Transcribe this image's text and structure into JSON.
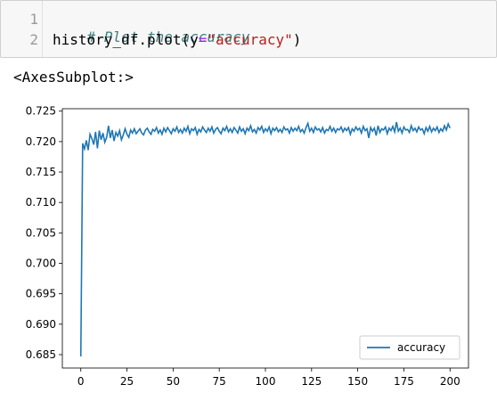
{
  "code_cell": {
    "lines": [
      {
        "number": "1",
        "comment": "# Plot the accuracy"
      },
      {
        "number": "2",
        "code_prefix": "history_df.plot(y",
        "code_equals": "=",
        "code_string": "\"accuracy\"",
        "code_suffix": ")"
      }
    ],
    "colors": {
      "comment": "#408080",
      "string": "#ba2121",
      "equals": "#aa22ff"
    }
  },
  "output": {
    "repr_text": "<AxesSubplot:>"
  },
  "chart_data": {
    "type": "line",
    "series": [
      {
        "name": "accuracy",
        "color": "#1f77b4",
        "x_start": 0,
        "values": [
          0.6847,
          0.7197,
          0.7188,
          0.7202,
          0.7186,
          0.7212,
          0.7205,
          0.7195,
          0.7216,
          0.7189,
          0.7218,
          0.7203,
          0.7214,
          0.7199,
          0.7207,
          0.7226,
          0.7206,
          0.7219,
          0.7201,
          0.7215,
          0.7209,
          0.7218,
          0.7203,
          0.7211,
          0.7221,
          0.7212,
          0.7207,
          0.7219,
          0.7214,
          0.7221,
          0.7213,
          0.7217,
          0.7221,
          0.7214,
          0.7211,
          0.7219,
          0.7222,
          0.7216,
          0.7212,
          0.722,
          0.7217,
          0.7223,
          0.7214,
          0.7219,
          0.7212,
          0.7222,
          0.7216,
          0.7223,
          0.7218,
          0.7213,
          0.7221,
          0.7217,
          0.7224,
          0.7215,
          0.722,
          0.7214,
          0.7222,
          0.7217,
          0.7225,
          0.7213,
          0.7221,
          0.7218,
          0.7223,
          0.7212,
          0.722,
          0.7216,
          0.7224,
          0.7219,
          0.7215,
          0.7222,
          0.7217,
          0.7224,
          0.7214,
          0.722,
          0.7223,
          0.7217,
          0.7213,
          0.7222,
          0.7218,
          0.7225,
          0.7216,
          0.7221,
          0.7215,
          0.7223,
          0.7219,
          0.7214,
          0.7224,
          0.7217,
          0.7221,
          0.7213,
          0.7222,
          0.7218,
          0.7226,
          0.7216,
          0.722,
          0.7214,
          0.7223,
          0.7219,
          0.7225,
          0.7215,
          0.7221,
          0.7217,
          0.7224,
          0.7213,
          0.7222,
          0.7218,
          0.7223,
          0.7216,
          0.722,
          0.7215,
          0.7224,
          0.7219,
          0.7221,
          0.7214,
          0.7223,
          0.7217,
          0.7222,
          0.7218,
          0.7225,
          0.7216,
          0.722,
          0.7214,
          0.7223,
          0.723,
          0.7217,
          0.7222,
          0.7215,
          0.7224,
          0.7219,
          0.7221,
          0.7216,
          0.7223,
          0.7214,
          0.722,
          0.7218,
          0.7225,
          0.7217,
          0.7222,
          0.7215,
          0.7221,
          0.7219,
          0.7224,
          0.7216,
          0.7222,
          0.7218,
          0.7223,
          0.7212,
          0.7221,
          0.7217,
          0.7224,
          0.7219,
          0.7222,
          0.7214,
          0.7225,
          0.7218,
          0.7221,
          0.7206,
          0.7223,
          0.7217,
          0.7222,
          0.721,
          0.7226,
          0.7215,
          0.7221,
          0.7219,
          0.7224,
          0.7213,
          0.7222,
          0.7218,
          0.7225,
          0.7216,
          0.7232,
          0.7217,
          0.7222,
          0.7214,
          0.7224,
          0.7219,
          0.722,
          0.7215,
          0.7226,
          0.7218,
          0.7222,
          0.7216,
          0.7224,
          0.7219,
          0.7221,
          0.7213,
          0.7223,
          0.7217,
          0.7225,
          0.7216,
          0.7222,
          0.7218,
          0.7224,
          0.7215,
          0.7221,
          0.7217,
          0.7226,
          0.7219,
          0.7229,
          0.7222
        ]
      }
    ],
    "xlim": [
      -10,
      210
    ],
    "ylim": [
      0.6828,
      0.7254
    ],
    "xticks": [
      0,
      25,
      50,
      75,
      100,
      125,
      150,
      175,
      200
    ],
    "yticks": [
      0.685,
      0.69,
      0.695,
      0.7,
      0.705,
      0.71,
      0.715,
      0.72,
      0.725
    ],
    "ytick_labels": [
      "0.685",
      "0.690",
      "0.695",
      "0.700",
      "0.705",
      "0.710",
      "0.715",
      "0.720",
      "0.725"
    ],
    "legend": {
      "placement": "lower-right",
      "label": "accuracy"
    },
    "grid": false
  }
}
